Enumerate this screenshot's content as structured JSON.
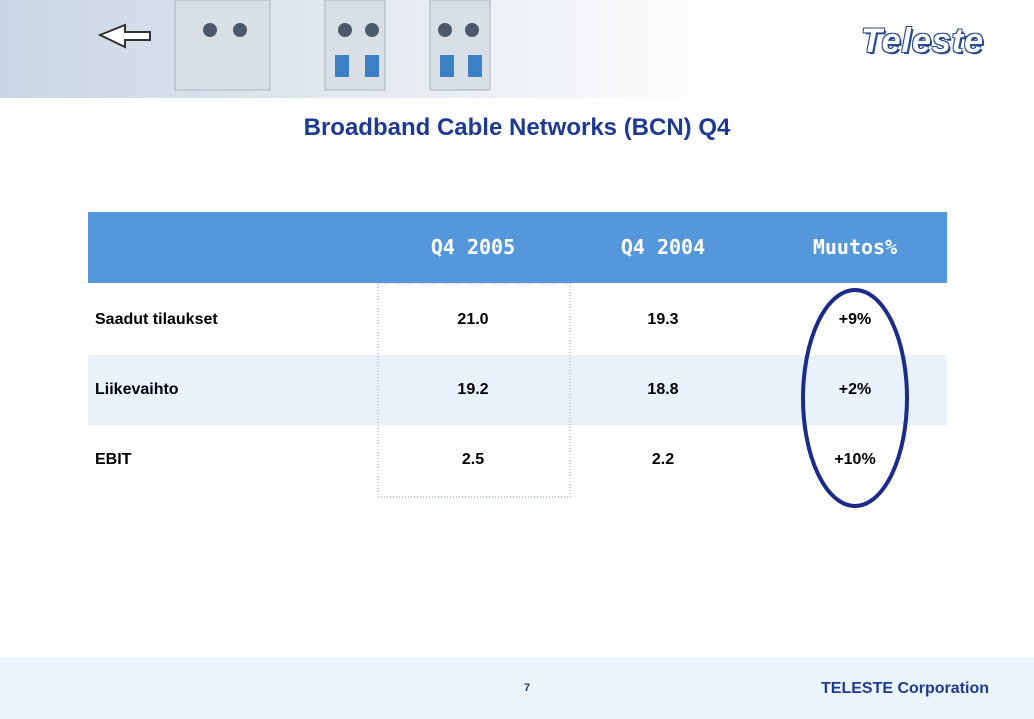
{
  "header": {
    "logo": "Teleste"
  },
  "title": "Broadband Cable Networks (BCN) Q4",
  "table": {
    "columns": [
      "Q4 2005",
      "Q4 2004",
      "Muutos%"
    ],
    "rows": [
      [
        "Saadut tilaukset",
        "21.0",
        "19.3",
        "+9%"
      ],
      [
        "Liikevaihto",
        "19.2",
        "18.8",
        "+2%"
      ],
      [
        "EBIT",
        "2.5",
        "2.2",
        "+10%"
      ]
    ]
  },
  "footer": {
    "page": "7",
    "company": "TELESTE Corporation"
  }
}
